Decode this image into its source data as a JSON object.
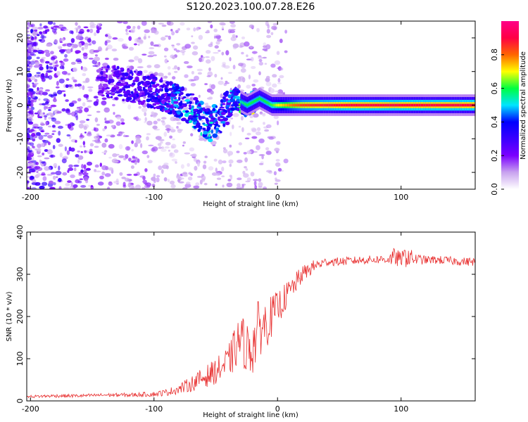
{
  "title": "S120.2023.100.07.28.E26",
  "chart_data": [
    {
      "type": "heatmap",
      "name": "spectrogram",
      "xlabel": "Height of straight line (km)",
      "ylabel": "Frequency (Hz)",
      "xlim": [
        -203,
        160
      ],
      "ylim": [
        -25,
        25
      ],
      "xticks": [
        -200,
        -100,
        0,
        100
      ],
      "yticks": [
        -20,
        -10,
        0,
        10,
        20
      ],
      "colorbar": {
        "label": "Normalized spectral amplitude",
        "range": [
          0.0,
          1.0
        ],
        "ticks": [
          0.0,
          0.2,
          0.4,
          0.6,
          0.8
        ],
        "tick_labels": [
          "0.0",
          "0.2",
          "0.4",
          "0.6",
          "0.8"
        ],
        "colormap": [
          "#ffffff",
          "#c9a3ef",
          "#7b00ff",
          "#3a00ff",
          "#0000ff",
          "#00e5ff",
          "#00ff40",
          "#ffff00",
          "#ff6600",
          "#ff0044",
          "#ff0088"
        ]
      },
      "ridge": {
        "x": [
          -140,
          -120,
          -100,
          -85,
          -70,
          -55,
          -45,
          -35,
          -30,
          -25,
          -20,
          -15,
          -10,
          -5,
          0,
          10,
          20,
          40,
          60,
          80,
          100,
          120,
          140,
          160
        ],
        "y": [
          7,
          6,
          4,
          2,
          -1,
          -6,
          -3,
          2,
          1,
          0,
          1,
          2,
          1,
          0,
          0,
          0,
          0,
          0,
          0,
          0,
          0,
          0,
          0,
          0
        ],
        "amplitude": [
          0.25,
          0.3,
          0.35,
          0.4,
          0.45,
          0.45,
          0.4,
          0.45,
          0.55,
          0.6,
          0.6,
          0.6,
          0.6,
          0.62,
          0.7,
          0.78,
          0.85,
          0.88,
          0.9,
          0.9,
          0.9,
          0.9,
          0.9,
          0.9
        ]
      }
    },
    {
      "type": "line",
      "name": "snr",
      "xlabel": "Height of straight line (km)",
      "ylabel": "SNR (10 * v/v)",
      "xlim": [
        -203,
        160
      ],
      "ylim": [
        0,
        400
      ],
      "xticks": [
        -200,
        -100,
        0,
        100
      ],
      "yticks": [
        0,
        100,
        200,
        300,
        400
      ],
      "series": [
        {
          "name": "SNR",
          "color": "#e83030",
          "x": [
            -203,
            -180,
            -160,
            -140,
            -120,
            -100,
            -90,
            -80,
            -70,
            -60,
            -50,
            -40,
            -35,
            -30,
            -25,
            -20,
            -15,
            -10,
            -5,
            0,
            10,
            20,
            30,
            40,
            50,
            60,
            70,
            80,
            90,
            95,
            100,
            105,
            110,
            120,
            130,
            140,
            150,
            160
          ],
          "values": [
            10,
            12,
            12,
            14,
            14,
            16,
            20,
            28,
            40,
            55,
            70,
            90,
            120,
            150,
            125,
            130,
            175,
            180,
            200,
            220,
            260,
            300,
            320,
            330,
            330,
            332,
            334,
            335,
            336,
            340,
            336,
            345,
            336,
            334,
            334,
            332,
            330,
            330
          ],
          "noise": [
            3,
            4,
            4,
            4,
            5,
            6,
            8,
            12,
            18,
            25,
            30,
            40,
            50,
            60,
            60,
            70,
            70,
            60,
            50,
            40,
            30,
            20,
            15,
            10,
            10,
            10,
            10,
            10,
            12,
            25,
            15,
            30,
            15,
            10,
            10,
            10,
            10,
            10
          ]
        }
      ]
    }
  ]
}
